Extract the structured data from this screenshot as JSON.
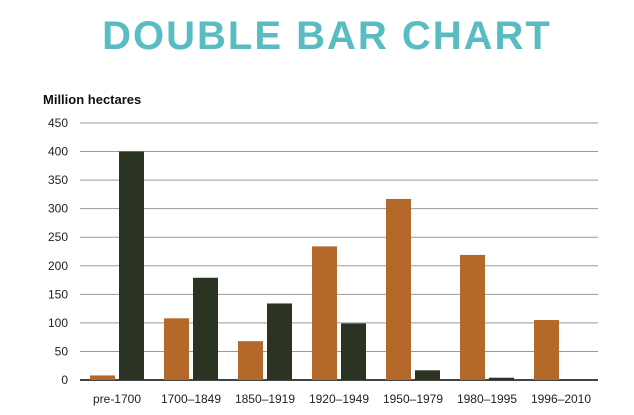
{
  "colors": {
    "title": "#58bcc2",
    "series_1": "#b4692a",
    "series_2": "#2b3422",
    "grid": "#9a9a9a",
    "axis": "#444444"
  },
  "chart_data": {
    "type": "bar",
    "title": "DOUBLE BAR CHART",
    "xlabel": "",
    "ylabel": "Million hectares",
    "ylim": [
      0,
      450
    ],
    "yticks": [
      0,
      50,
      100,
      150,
      200,
      250,
      300,
      350,
      400,
      450
    ],
    "grid": true,
    "legend": "none",
    "categories": [
      "pre-1700",
      "1700–1849",
      "1850–1919",
      "1920–1949",
      "1950–1979",
      "1980–1995",
      "1996–2010"
    ],
    "series": [
      {
        "values": [
          8,
          108,
          68,
          234,
          317,
          219,
          105
        ]
      },
      {
        "values": [
          400,
          179,
          134,
          99,
          17,
          4,
          0
        ]
      }
    ]
  }
}
